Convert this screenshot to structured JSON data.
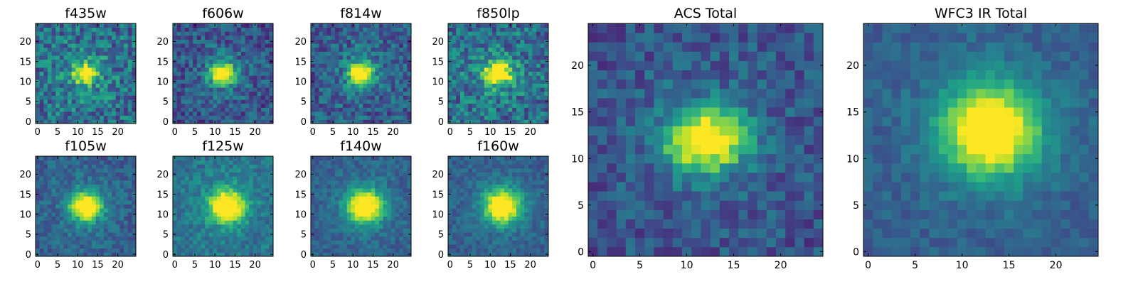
{
  "figure": {
    "colormap": "viridis",
    "panel_titles": [
      "f435w",
      "f606w",
      "f814w",
      "f850lp",
      "f105w",
      "f125w",
      "f140w",
      "f160w",
      "ACS Total",
      "WFC3 IR Total"
    ]
  },
  "chart_data": [
    {
      "type": "heatmap",
      "title": "f435w",
      "grid_size": [
        25,
        25
      ],
      "source_center": [
        12,
        12
      ],
      "source_sigma": [
        2.0,
        1.6
      ],
      "background_level": 0.35,
      "noise_level": 0.22,
      "xticks": [
        0,
        5,
        10,
        15,
        20
      ],
      "yticks": [
        0,
        5,
        10,
        15,
        20
      ],
      "xlim": [
        -0.5,
        24.5
      ],
      "ylim": [
        -0.5,
        24.5
      ]
    },
    {
      "type": "heatmap",
      "title": "f606w",
      "grid_size": [
        25,
        25
      ],
      "source_center": [
        12,
        12
      ],
      "source_sigma": [
        2.2,
        1.8
      ],
      "background_level": 0.25,
      "noise_level": 0.18,
      "xticks": [
        0,
        5,
        10,
        15,
        20
      ],
      "yticks": [
        0,
        5,
        10,
        15,
        20
      ],
      "xlim": [
        -0.5,
        24.5
      ],
      "ylim": [
        -0.5,
        24.5
      ]
    },
    {
      "type": "heatmap",
      "title": "f814w",
      "grid_size": [
        25,
        25
      ],
      "source_center": [
        12,
        12
      ],
      "source_sigma": [
        2.0,
        2.0
      ],
      "background_level": 0.28,
      "noise_level": 0.18,
      "xticks": [
        0,
        5,
        10,
        15,
        20
      ],
      "yticks": [
        0,
        5,
        10,
        15,
        20
      ],
      "xlim": [
        -0.5,
        24.5
      ],
      "ylim": [
        -0.5,
        24.5
      ]
    },
    {
      "type": "heatmap",
      "title": "f850lp",
      "grid_size": [
        25,
        25
      ],
      "source_center": [
        12,
        12
      ],
      "source_sigma": [
        2.4,
        1.9
      ],
      "background_level": 0.35,
      "noise_level": 0.22,
      "xticks": [
        0,
        5,
        10,
        15,
        20
      ],
      "yticks": [
        0,
        5,
        10,
        15,
        20
      ],
      "xlim": [
        -0.5,
        24.5
      ],
      "ylim": [
        -0.5,
        24.5
      ]
    },
    {
      "type": "heatmap",
      "title": "f105w",
      "grid_size": [
        25,
        25
      ],
      "source_center": [
        12,
        12
      ],
      "source_sigma": [
        2.6,
        2.4
      ],
      "background_level": 0.3,
      "noise_level": 0.12,
      "xticks": [
        0,
        5,
        10,
        15,
        20
      ],
      "yticks": [
        0,
        5,
        10,
        15,
        20
      ],
      "xlim": [
        -0.5,
        24.5
      ],
      "ylim": [
        -0.5,
        24.5
      ]
    },
    {
      "type": "heatmap",
      "title": "f125w",
      "grid_size": [
        25,
        25
      ],
      "source_center": [
        13,
        12
      ],
      "source_sigma": [
        2.8,
        2.6
      ],
      "background_level": 0.38,
      "noise_level": 0.12,
      "xticks": [
        0,
        5,
        10,
        15,
        20
      ],
      "yticks": [
        0,
        5,
        10,
        15,
        20
      ],
      "xlim": [
        -0.5,
        24.5
      ],
      "ylim": [
        -0.5,
        24.5
      ]
    },
    {
      "type": "heatmap",
      "title": "f140w",
      "grid_size": [
        25,
        25
      ],
      "source_center": [
        13,
        12
      ],
      "source_sigma": [
        3.0,
        2.8
      ],
      "background_level": 0.3,
      "noise_level": 0.1,
      "xticks": [
        0,
        5,
        10,
        15,
        20
      ],
      "yticks": [
        0,
        5,
        10,
        15,
        20
      ],
      "xlim": [
        -0.5,
        24.5
      ],
      "ylim": [
        -0.5,
        24.5
      ]
    },
    {
      "type": "heatmap",
      "title": "f160w",
      "grid_size": [
        25,
        25
      ],
      "source_center": [
        13,
        12
      ],
      "source_sigma": [
        3.0,
        2.8
      ],
      "background_level": 0.3,
      "noise_level": 0.1,
      "xticks": [
        0,
        5,
        10,
        15,
        20
      ],
      "yticks": [
        0,
        5,
        10,
        15,
        20
      ],
      "xlim": [
        -0.5,
        24.5
      ],
      "ylim": [
        -0.5,
        24.5
      ]
    },
    {
      "type": "heatmap",
      "title": "ACS Total",
      "grid_size": [
        25,
        25
      ],
      "source_center": [
        12,
        12
      ],
      "source_sigma": [
        2.8,
        2.2
      ],
      "background_level": 0.25,
      "noise_level": 0.14,
      "xticks": [
        0,
        5,
        10,
        15,
        20
      ],
      "yticks": [
        0,
        5,
        10,
        15,
        20
      ],
      "xlim": [
        -0.5,
        24.5
      ],
      "ylim": [
        -0.5,
        24.5
      ]
    },
    {
      "type": "heatmap",
      "title": "WFC3 IR Total",
      "grid_size": [
        25,
        25
      ],
      "source_center": [
        13,
        13
      ],
      "source_sigma": [
        3.4,
        3.2
      ],
      "background_level": 0.3,
      "noise_level": 0.08,
      "xticks": [
        0,
        5,
        10,
        15,
        20
      ],
      "yticks": [
        0,
        5,
        10,
        15,
        20
      ],
      "xlim": [
        -0.5,
        24.5
      ],
      "ylim": [
        -0.5,
        24.5
      ]
    }
  ]
}
